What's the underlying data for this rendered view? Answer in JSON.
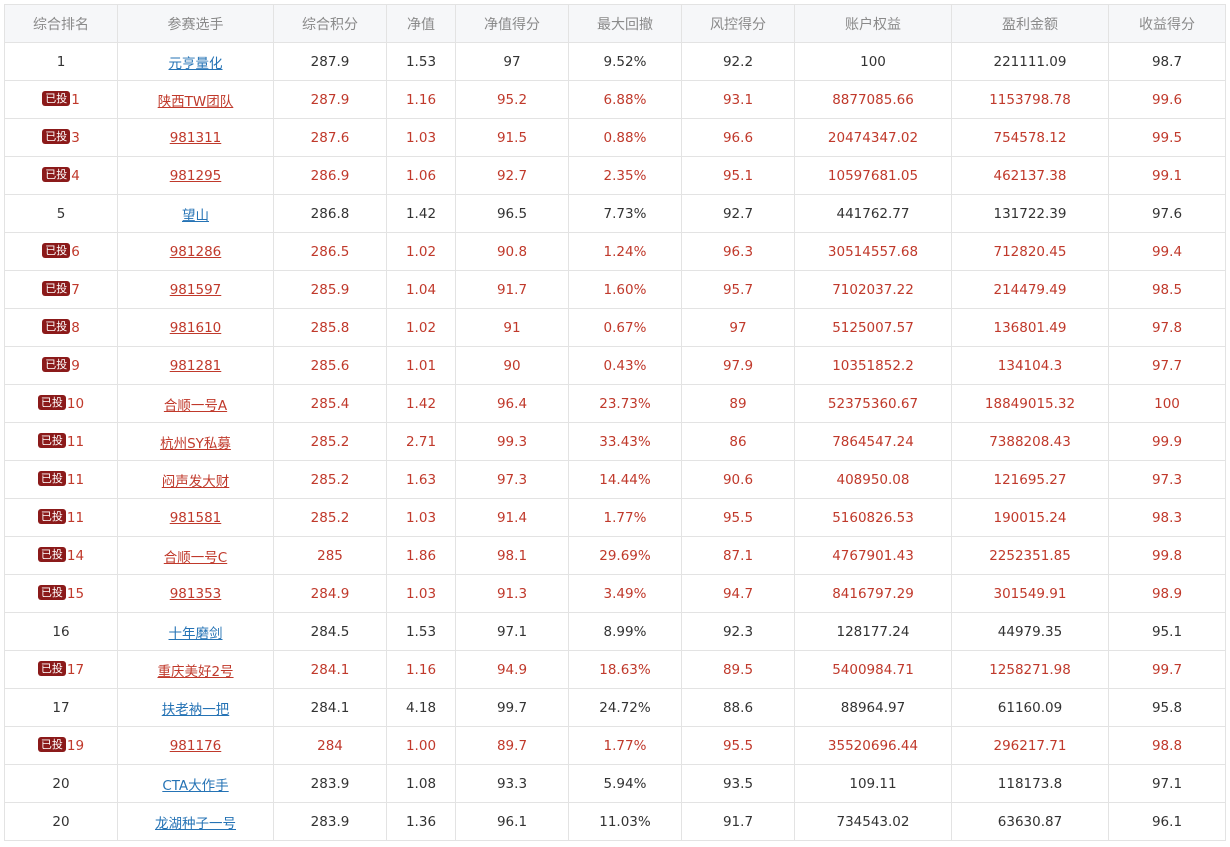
{
  "columns": [
    "综合排名",
    "参赛选手",
    "综合积分",
    "净值",
    "净值得分",
    "最大回撤",
    "风控得分",
    "账户权益",
    "盈利金额",
    "收益得分"
  ],
  "badge_label": "已投",
  "colors": {
    "invested_text": "#c0392b",
    "badge_bg": "#8b1a1a",
    "link_blue": "#2573b5",
    "normal_text": "#333333"
  },
  "rows": [
    {
      "rank": "1",
      "invested": false,
      "name": "元亨量化",
      "score": "287.9",
      "nav": "1.53",
      "nav_score": "97",
      "max_dd": "9.52%",
      "risk_score": "92.2",
      "equity": "100",
      "profit": "221111.09",
      "return_score": "98.7"
    },
    {
      "rank": "1",
      "invested": true,
      "name": "陕西TW团队",
      "score": "287.9",
      "nav": "1.16",
      "nav_score": "95.2",
      "max_dd": "6.88%",
      "risk_score": "93.1",
      "equity": "8877085.66",
      "profit": "1153798.78",
      "return_score": "99.6"
    },
    {
      "rank": "3",
      "invested": true,
      "name": "981311",
      "score": "287.6",
      "nav": "1.03",
      "nav_score": "91.5",
      "max_dd": "0.88%",
      "risk_score": "96.6",
      "equity": "20474347.02",
      "profit": "754578.12",
      "return_score": "99.5"
    },
    {
      "rank": "4",
      "invested": true,
      "name": "981295",
      "score": "286.9",
      "nav": "1.06",
      "nav_score": "92.7",
      "max_dd": "2.35%",
      "risk_score": "95.1",
      "equity": "10597681.05",
      "profit": "462137.38",
      "return_score": "99.1"
    },
    {
      "rank": "5",
      "invested": false,
      "name": "望山",
      "score": "286.8",
      "nav": "1.42",
      "nav_score": "96.5",
      "max_dd": "7.73%",
      "risk_score": "92.7",
      "equity": "441762.77",
      "profit": "131722.39",
      "return_score": "97.6"
    },
    {
      "rank": "6",
      "invested": true,
      "name": "981286",
      "score": "286.5",
      "nav": "1.02",
      "nav_score": "90.8",
      "max_dd": "1.24%",
      "risk_score": "96.3",
      "equity": "30514557.68",
      "profit": "712820.45",
      "return_score": "99.4"
    },
    {
      "rank": "7",
      "invested": true,
      "name": "981597",
      "score": "285.9",
      "nav": "1.04",
      "nav_score": "91.7",
      "max_dd": "1.60%",
      "risk_score": "95.7",
      "equity": "7102037.22",
      "profit": "214479.49",
      "return_score": "98.5"
    },
    {
      "rank": "8",
      "invested": true,
      "name": "981610",
      "score": "285.8",
      "nav": "1.02",
      "nav_score": "91",
      "max_dd": "0.67%",
      "risk_score": "97",
      "equity": "5125007.57",
      "profit": "136801.49",
      "return_score": "97.8"
    },
    {
      "rank": "9",
      "invested": true,
      "name": "981281",
      "score": "285.6",
      "nav": "1.01",
      "nav_score": "90",
      "max_dd": "0.43%",
      "risk_score": "97.9",
      "equity": "10351852.2",
      "profit": "134104.3",
      "return_score": "97.7"
    },
    {
      "rank": "10",
      "invested": true,
      "name": "合顺一号A",
      "score": "285.4",
      "nav": "1.42",
      "nav_score": "96.4",
      "max_dd": "23.73%",
      "risk_score": "89",
      "equity": "52375360.67",
      "profit": "18849015.32",
      "return_score": "100"
    },
    {
      "rank": "11",
      "invested": true,
      "name": "杭州SY私募",
      "score": "285.2",
      "nav": "2.71",
      "nav_score": "99.3",
      "max_dd": "33.43%",
      "risk_score": "86",
      "equity": "7864547.24",
      "profit": "7388208.43",
      "return_score": "99.9"
    },
    {
      "rank": "11",
      "invested": true,
      "name": "闷声发大财",
      "score": "285.2",
      "nav": "1.63",
      "nav_score": "97.3",
      "max_dd": "14.44%",
      "risk_score": "90.6",
      "equity": "408950.08",
      "profit": "121695.27",
      "return_score": "97.3"
    },
    {
      "rank": "11",
      "invested": true,
      "name": "981581",
      "score": "285.2",
      "nav": "1.03",
      "nav_score": "91.4",
      "max_dd": "1.77%",
      "risk_score": "95.5",
      "equity": "5160826.53",
      "profit": "190015.24",
      "return_score": "98.3"
    },
    {
      "rank": "14",
      "invested": true,
      "name": "合顺一号C",
      "score": "285",
      "nav": "1.86",
      "nav_score": "98.1",
      "max_dd": "29.69%",
      "risk_score": "87.1",
      "equity": "4767901.43",
      "profit": "2252351.85",
      "return_score": "99.8"
    },
    {
      "rank": "15",
      "invested": true,
      "name": "981353",
      "score": "284.9",
      "nav": "1.03",
      "nav_score": "91.3",
      "max_dd": "3.49%",
      "risk_score": "94.7",
      "equity": "8416797.29",
      "profit": "301549.91",
      "return_score": "98.9"
    },
    {
      "rank": "16",
      "invested": false,
      "name": "十年磨剑",
      "score": "284.5",
      "nav": "1.53",
      "nav_score": "97.1",
      "max_dd": "8.99%",
      "risk_score": "92.3",
      "equity": "128177.24",
      "profit": "44979.35",
      "return_score": "95.1"
    },
    {
      "rank": "17",
      "invested": true,
      "name": "重庆美好2号",
      "score": "284.1",
      "nav": "1.16",
      "nav_score": "94.9",
      "max_dd": "18.63%",
      "risk_score": "89.5",
      "equity": "5400984.71",
      "profit": "1258271.98",
      "return_score": "99.7"
    },
    {
      "rank": "17",
      "invested": false,
      "name": "扶老衲一把",
      "score": "284.1",
      "nav": "4.18",
      "nav_score": "99.7",
      "max_dd": "24.72%",
      "risk_score": "88.6",
      "equity": "88964.97",
      "profit": "61160.09",
      "return_score": "95.8"
    },
    {
      "rank": "19",
      "invested": true,
      "name": "981176",
      "score": "284",
      "nav": "1.00",
      "nav_score": "89.7",
      "max_dd": "1.77%",
      "risk_score": "95.5",
      "equity": "35520696.44",
      "profit": "296217.71",
      "return_score": "98.8"
    },
    {
      "rank": "20",
      "invested": false,
      "name": "CTA大作手",
      "score": "283.9",
      "nav": "1.08",
      "nav_score": "93.3",
      "max_dd": "5.94%",
      "risk_score": "93.5",
      "equity": "109.11",
      "profit": "118173.8",
      "return_score": "97.1"
    },
    {
      "rank": "20",
      "invested": false,
      "name": "龙湖种子一号",
      "score": "283.9",
      "nav": "1.36",
      "nav_score": "96.1",
      "max_dd": "11.03%",
      "risk_score": "91.7",
      "equity": "734543.02",
      "profit": "63630.87",
      "return_score": "96.1"
    }
  ]
}
